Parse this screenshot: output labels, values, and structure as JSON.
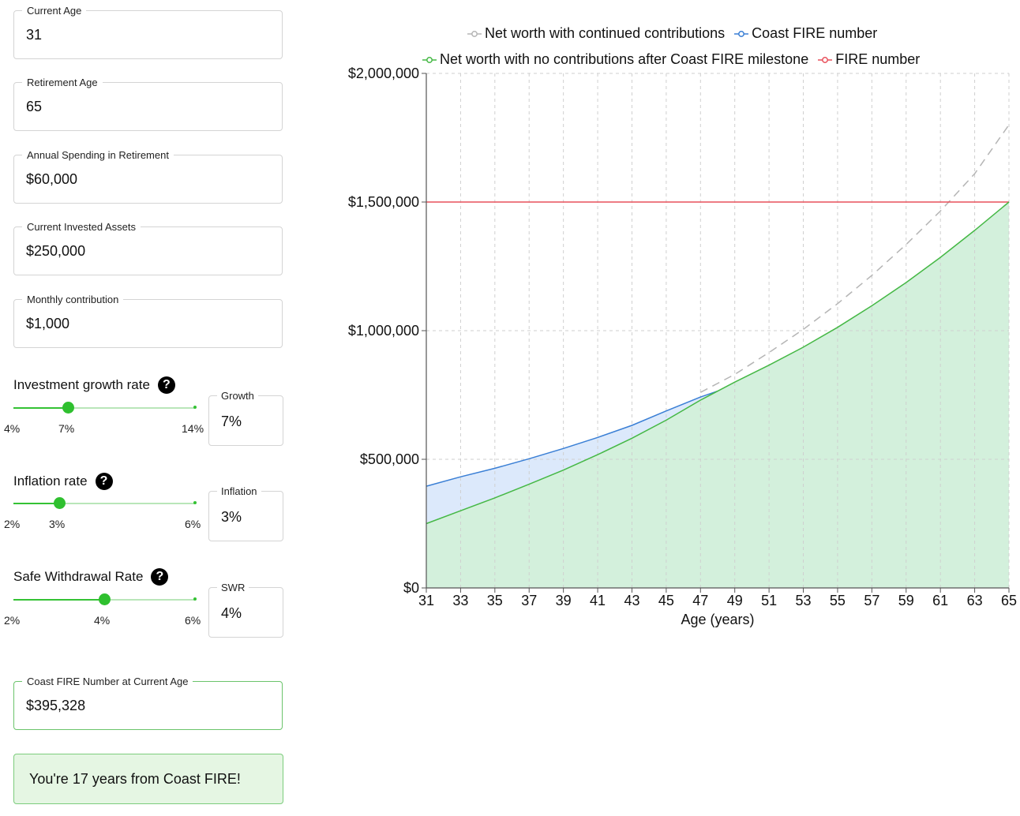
{
  "fields": {
    "current_age": {
      "label": "Current Age",
      "value": "31"
    },
    "retirement_age": {
      "label": "Retirement Age",
      "value": "65"
    },
    "annual_spending": {
      "label": "Annual Spending in Retirement",
      "value": "$60,000"
    },
    "current_assets": {
      "label": "Current Invested Assets",
      "value": "$250,000"
    },
    "monthly_contribution": {
      "label": "Monthly contribution",
      "value": "$1,000"
    }
  },
  "sliders": {
    "growth": {
      "title": "Investment growth rate",
      "help": "?",
      "min_label": "4%",
      "value_label": "7%",
      "max_label": "14%",
      "fraction": 0.3,
      "box_label": "Growth",
      "box_value": "7%"
    },
    "inflation": {
      "title": "Inflation rate",
      "help": "?",
      "min_label": "2%",
      "value_label": "3%",
      "max_label": "6%",
      "fraction": 0.25,
      "box_label": "Inflation",
      "box_value": "3%"
    },
    "swr": {
      "title": "Safe Withdrawal Rate",
      "help": "?",
      "min_label": "2%",
      "value_label": "4%",
      "max_label": "6%",
      "fraction": 0.5,
      "box_label": "SWR",
      "box_value": "4%"
    }
  },
  "coast_number": {
    "label": "Coast FIRE Number at Current Age",
    "value": "$395,328"
  },
  "result_message": "You're 17 years from Coast FIRE!",
  "chart_data": {
    "type": "line",
    "xlabel": "Age (years)",
    "ylabel": "",
    "xlim": [
      31,
      65
    ],
    "ylim": [
      0,
      2000000
    ],
    "x_ticks": [
      "31",
      "33",
      "35",
      "37",
      "39",
      "41",
      "43",
      "45",
      "47",
      "49",
      "51",
      "53",
      "55",
      "57",
      "59",
      "61",
      "63",
      "65"
    ],
    "y_ticks": [
      "$0",
      "$500,000",
      "$1,000,000",
      "$1,500,000",
      "$2,000,000"
    ],
    "legend": [
      "Net worth with continued contributions",
      "Coast FIRE number",
      "Net worth with no contributions after Coast FIRE milestone",
      "FIRE number"
    ],
    "series": [
      {
        "name": "Net worth with continued contributions",
        "color": "#b5b5b5",
        "style": "dashed",
        "x": [
          47,
          49,
          51,
          53,
          55,
          57,
          59,
          61,
          63,
          65
        ],
        "values": [
          760000,
          830000,
          915000,
          1005000,
          1105000,
          1215000,
          1335000,
          1465000,
          1610000,
          1800000
        ]
      },
      {
        "name": "Coast FIRE number",
        "color": "#3a7fd5",
        "style": "solid",
        "x": [
          31,
          33,
          35,
          37,
          39,
          41,
          43,
          45,
          47,
          48
        ],
        "values": [
          395328,
          432000,
          465000,
          502000,
          542000,
          585000,
          632000,
          688000,
          742000,
          765000
        ]
      },
      {
        "name": "Net worth with no contributions after Coast FIRE milestone",
        "color": "#45b845",
        "style": "solid",
        "x": [
          31,
          33,
          35,
          37,
          39,
          41,
          43,
          45,
          47,
          49,
          51,
          53,
          55,
          57,
          59,
          61,
          63,
          65
        ],
        "values": [
          250000,
          300000,
          350000,
          403000,
          458000,
          518000,
          582000,
          652000,
          730000,
          800000,
          866000,
          936000,
          1013000,
          1097000,
          1187000,
          1285000,
          1390000,
          1500000
        ]
      },
      {
        "name": "FIRE number",
        "color": "#e8505b",
        "style": "solid",
        "x": [
          31,
          65
        ],
        "values": [
          1500000,
          1500000
        ]
      }
    ]
  }
}
